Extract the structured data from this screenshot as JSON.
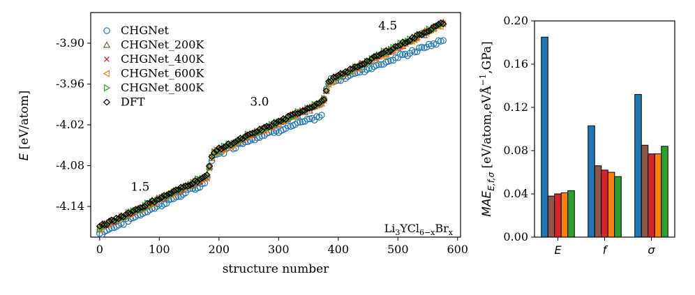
{
  "chart_data": [
    {
      "type": "scatter",
      "xlabel": "structure number",
      "ylabel_main": "E",
      "ylabel_unit": " [eV/atom]",
      "xlim": [
        -15,
        605
      ],
      "ylim": [
        -4.185,
        -3.855
      ],
      "x_ticks": [
        0,
        100,
        200,
        300,
        400,
        500,
        600
      ],
      "y_ticks": [
        -4.14,
        -4.08,
        -4.02,
        -3.96,
        -3.9
      ],
      "y_tick_labels": [
        "-4.14",
        "-4.08",
        "-4.02",
        "-3.96",
        "-3.90"
      ],
      "legend_position": "top-left",
      "series": [
        {
          "name": "CHGNet",
          "marker": "circle",
          "color": "#1f77b4",
          "offset_profile": "chgnet"
        },
        {
          "name": "CHGNet_200K",
          "marker": "triangle-up",
          "color": "#8c564b",
          "offset_profile": "small"
        },
        {
          "name": "CHGNet_400K",
          "marker": "x",
          "color": "#d62728",
          "offset_profile": "small"
        },
        {
          "name": "CHGNet_600K",
          "marker": "triangle-left",
          "color": "#ff7f0e",
          "offset_profile": "small"
        },
        {
          "name": "CHGNet_800K",
          "marker": "triangle-right",
          "color": "#2ca02c",
          "offset_profile": "small"
        },
        {
          "name": "DFT",
          "marker": "diamond",
          "color": "#000000",
          "offset_profile": "none"
        }
      ],
      "dft_segments": [
        {
          "x_range": [
            0,
            180
          ],
          "y_range": [
            -4.17,
            -4.095
          ]
        },
        {
          "x_range": [
            190,
            375
          ],
          "y_range": [
            -4.06,
            -3.985
          ]
        },
        {
          "x_range": [
            385,
            576
          ],
          "y_range": [
            -3.955,
            -3.87
          ]
        }
      ],
      "annotations": [
        {
          "text": "1.5",
          "x": 68,
          "y": -4.117
        },
        {
          "text": "3.0",
          "x": 268,
          "y": -3.992
        },
        {
          "text": "4.5",
          "x": 483,
          "y": -3.88
        }
      ],
      "corner_label": {
        "base": "Li",
        "sub1": "3",
        "mid": "YCl",
        "sub2": "6−x",
        "mid2": "Br",
        "sub3": "x"
      }
    },
    {
      "type": "bar",
      "ylabel": "MAE_{E,f,σ} [eV/atom,eVÅ⁻¹,GPa]",
      "ylabel_parts": {
        "main": "MAE",
        "sub": "E,f,σ",
        "unit": " [eV/atom,eVÅ",
        "sup": "−1",
        "tail": ",GPa]"
      },
      "categories": [
        "E",
        "f",
        "σ"
      ],
      "ylim": [
        0,
        0.2
      ],
      "y_ticks": [
        0.0,
        0.04,
        0.08,
        0.12,
        0.16,
        0.2
      ],
      "y_tick_labels": [
        "0.00",
        "0.04",
        "0.08",
        "0.12",
        "0.16",
        "0.20"
      ],
      "series": [
        {
          "name": "CHGNet",
          "color": "#1f77b4",
          "values": [
            0.185,
            0.103,
            0.132
          ]
        },
        {
          "name": "CHGNet_200K",
          "color": "#8c564b",
          "values": [
            0.038,
            0.066,
            0.085
          ]
        },
        {
          "name": "CHGNet_400K",
          "color": "#d62728",
          "values": [
            0.04,
            0.062,
            0.077
          ]
        },
        {
          "name": "CHGNet_600K",
          "color": "#ff7f0e",
          "values": [
            0.041,
            0.06,
            0.077
          ]
        },
        {
          "name": "CHGNet_800K",
          "color": "#2ca02c",
          "values": [
            0.043,
            0.056,
            0.084
          ]
        }
      ]
    }
  ]
}
